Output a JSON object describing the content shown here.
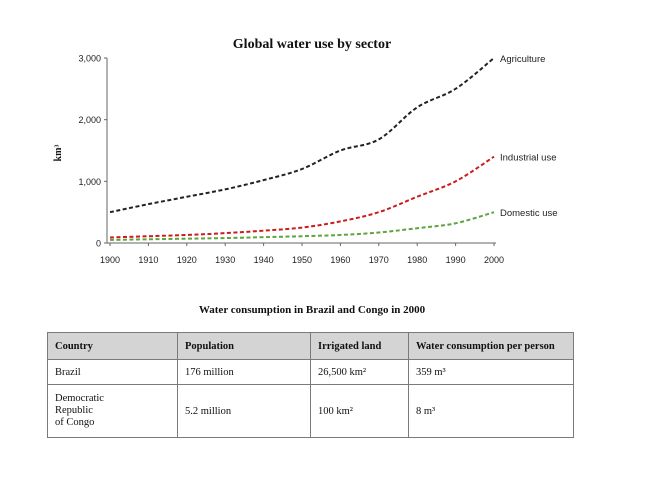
{
  "chart_data": {
    "type": "line",
    "title": "Global water use by sector",
    "ylabel": "km³",
    "xlabel": "",
    "ylim": [
      0,
      3000
    ],
    "xlim": [
      1900,
      2000
    ],
    "y_tick_labels": [
      "0",
      "1,000",
      "2,000",
      "3,000"
    ],
    "x_tick_labels": [
      "1900",
      "1910",
      "1920",
      "1930",
      "1940",
      "1950",
      "1960",
      "1970",
      "1980",
      "1990",
      "2000"
    ],
    "x": [
      1900,
      1910,
      1920,
      1930,
      1940,
      1950,
      1960,
      1970,
      1980,
      1990,
      2000
    ],
    "grid": false,
    "legend": "series labels at line ends (right)",
    "series": [
      {
        "name": "Agriculture",
        "color": "#222222",
        "values": [
          500,
          630,
          750,
          870,
          1020,
          1200,
          1500,
          1680,
          2200,
          2500,
          3000
        ]
      },
      {
        "name": "Industrial use",
        "color": "#cc1b1b",
        "values": [
          90,
          110,
          130,
          160,
          200,
          250,
          350,
          500,
          750,
          1000,
          1400
        ]
      },
      {
        "name": "Domestic use",
        "color": "#5fa43c",
        "values": [
          50,
          60,
          70,
          80,
          95,
          110,
          130,
          170,
          240,
          320,
          500
        ]
      }
    ]
  },
  "table": {
    "title": "Water consumption in Brazil and Congo in 2000",
    "headers": [
      "Country",
      "Population",
      "Irrigated land",
      "Water consumption per person"
    ],
    "rows": [
      {
        "country": "Brazil",
        "population": "176 million",
        "irrigated": "26,500 km²",
        "consumption": "359 m³"
      },
      {
        "country": "Democratic\nRepublic\nof Congo",
        "population": "5.2 million",
        "irrigated": "100 km²",
        "consumption": "8 m³"
      }
    ]
  }
}
